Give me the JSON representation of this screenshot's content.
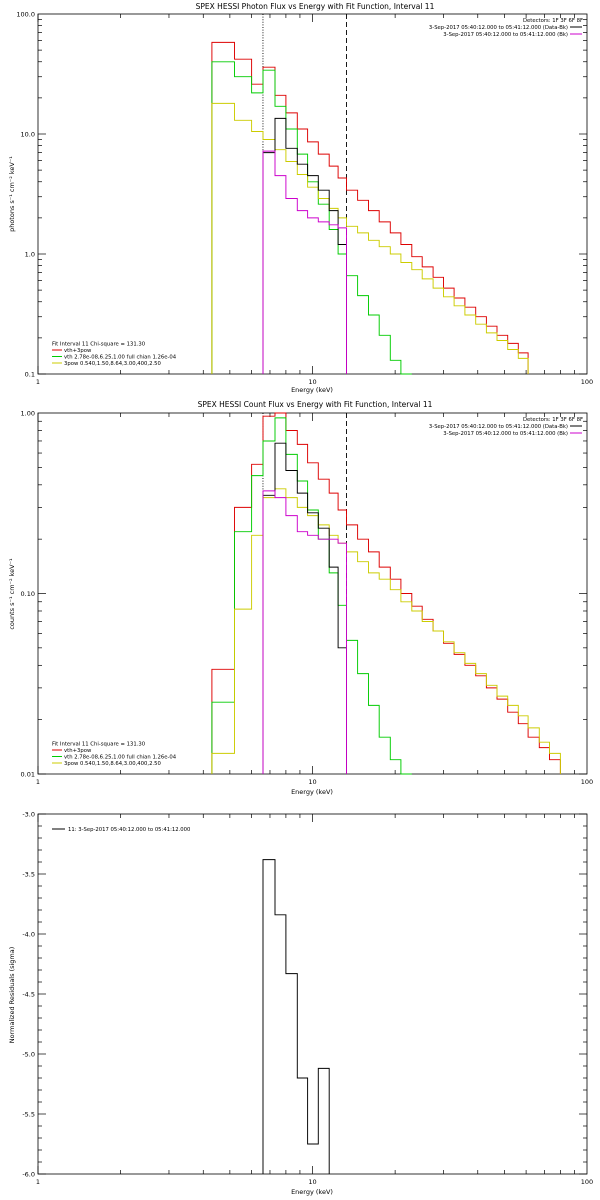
{
  "chart_data": [
    {
      "type": "line",
      "title": "SPEX HESSI Photon Flux vs Energy with Fit Function, Interval 11",
      "xlabel": "Energy (keV)",
      "ylabel": "photons s⁻¹ cm⁻² keV⁻¹",
      "xscale": "log",
      "yscale": "log",
      "xlim": [
        1,
        100
      ],
      "ylim": [
        0.1,
        100
      ],
      "xticklabels": [
        "1",
        "10",
        "100"
      ],
      "yticklabels": [
        "0.1",
        "1.0",
        "10.0",
        "100.0"
      ],
      "grid": false,
      "legend_top": {
        "position": "top-right",
        "entries": [
          {
            "text": "Detectors: 1F 3F 6F 8F",
            "color": ""
          },
          {
            "text": "3-Sep-2017 05:40:12.000 to 05:41:12.000 (Data-Bk)",
            "color": "#000000"
          },
          {
            "text": "3-Sep-2017 05:40:12.000 to 05:41:12.000 (Bk)",
            "color": "#cc00cc"
          }
        ]
      },
      "legend_bottom": {
        "position": "bottom-left",
        "entries": [
          {
            "text": "Fit Interval 11   Chi-square = 131.30",
            "color": ""
          },
          {
            "text": "vth+3pow",
            "color": "#dd0000"
          },
          {
            "text": "vth 2.78e-08,6.25,1.00  full chian 1.26e-04",
            "color": "#00cc00"
          },
          {
            "text": "3pow 0.540,1.50,8.64,3.00,400,2.50",
            "color": "#cccc00"
          }
        ]
      },
      "vlines": [
        {
          "x": 6.6,
          "style": "dotted"
        },
        {
          "x": 13.3,
          "style": "dashed"
        }
      ],
      "edges": [
        4.3,
        5.2,
        6.0,
        6.6,
        7.3,
        8.0,
        8.8,
        9.6,
        10.5,
        11.5,
        12.4,
        13.3,
        14.6,
        16.0,
        17.5,
        19.2,
        21.0,
        23.0,
        25.1,
        27.5,
        30.0,
        32.8,
        35.9,
        39.3,
        43.0,
        47.0,
        51.4,
        56.2,
        61.0
      ],
      "series": [
        {
          "name": "vth+3pow",
          "color": "#dd0000",
          "start": 0,
          "values": [
            58,
            42,
            26,
            36,
            21,
            15,
            11,
            8.6,
            6.8,
            5.4,
            4.3,
            3.4,
            2.8,
            2.3,
            1.85,
            1.5,
            1.2,
            0.95,
            0.78,
            0.64,
            0.52,
            0.43,
            0.36,
            0.3,
            0.25,
            0.21,
            0.18,
            0.15
          ]
        },
        {
          "name": "vth 2.78e-08,6.25,1.00  full chian 1.26e-04",
          "color": "#00cc00",
          "start": 0,
          "values": [
            40,
            30,
            22,
            34,
            17,
            11,
            6.8,
            4.0,
            2.6,
            1.6,
            1.0,
            0.66,
            0.45,
            0.31,
            0.21,
            0.13,
            0.1
          ]
        },
        {
          "name": "3pow 0.540,1.50,8.64,3.00,400,2.50",
          "color": "#cccc00",
          "start": 0,
          "values": [
            18,
            13,
            10.5,
            9,
            7.4,
            5.9,
            4.6,
            3.6,
            2.9,
            2.4,
            2.0,
            1.7,
            1.5,
            1.3,
            1.15,
            1.0,
            0.85,
            0.74,
            0.62,
            0.52,
            0.44,
            0.37,
            0.31,
            0.26,
            0.22,
            0.19,
            0.16,
            0.135
          ]
        },
        {
          "name": "3-Sep-2017 05:40:12.000 to 05:41:12.000 (Data-Bk)",
          "color": "#000000",
          "start": 3,
          "values": [
            7.0,
            13.5,
            7.6,
            5.6,
            4.5,
            3.4,
            2.3,
            1.2
          ]
        },
        {
          "name": "3-Sep-2017 05:40:12.000 to 05:41:12.000 (Bk)",
          "color": "#cc00cc",
          "start": 3,
          "values": [
            7.2,
            4.5,
            2.9,
            2.3,
            2.0,
            1.85,
            1.75,
            1.65
          ]
        }
      ]
    },
    {
      "type": "line",
      "title": "SPEX HESSI Count Flux vs Energy with Fit Function, Interval 11",
      "xlabel": "Energy (keV)",
      "ylabel": "counts s⁻¹ cm⁻² keV⁻¹",
      "xscale": "log",
      "yscale": "log",
      "xlim": [
        1,
        100
      ],
      "ylim": [
        0.01,
        1
      ],
      "xticklabels": [
        "1",
        "10",
        "100"
      ],
      "yticklabels": [
        "0.01",
        "0.10",
        "1.00"
      ],
      "grid": false,
      "legend_top": {
        "position": "top-right",
        "entries": [
          {
            "text": "Detectors: 1F 3F 6F 8F",
            "color": ""
          },
          {
            "text": "3-Sep-2017 05:40:12.000 to 05:41:12.000 (Data-Bk)",
            "color": "#000000"
          },
          {
            "text": "3-Sep-2017 05:40:12.000 to 05:41:12.000 (Bk)",
            "color": "#cc00cc"
          }
        ]
      },
      "legend_bottom": {
        "position": "bottom-left",
        "entries": [
          {
            "text": "Fit Interval 11   Chi-square = 131.30",
            "color": ""
          },
          {
            "text": "vth+3pow",
            "color": "#dd0000"
          },
          {
            "text": "vth 2.78e-08,6.25,1.00  full chian 1.26e-04",
            "color": "#00cc00"
          },
          {
            "text": "3pow 0.540,1.50,8.64,3.00,400,2.50",
            "color": "#cccc00"
          }
        ]
      },
      "vlines": [
        {
          "x": 6.6,
          "style": "dotted"
        },
        {
          "x": 13.3,
          "style": "dashed"
        }
      ],
      "edges": [
        4.3,
        5.2,
        6.0,
        6.6,
        7.3,
        8.0,
        8.8,
        9.6,
        10.5,
        11.5,
        12.4,
        13.3,
        14.6,
        16.0,
        17.5,
        19.2,
        21.0,
        23.0,
        25.1,
        27.5,
        30.0,
        32.8,
        35.9,
        39.3,
        43.0,
        47.0,
        51.4,
        56.2,
        61.0,
        67.0,
        73.0,
        80.0
      ],
      "series": [
        {
          "name": "vth+3pow",
          "color": "#dd0000",
          "start": 0,
          "values": [
            0.038,
            0.3,
            0.52,
            0.96,
            1.0,
            0.8,
            0.67,
            0.53,
            0.43,
            0.36,
            0.29,
            0.24,
            0.2,
            0.17,
            0.14,
            0.12,
            0.1,
            0.085,
            0.072,
            0.062,
            0.053,
            0.046,
            0.04,
            0.035,
            0.03,
            0.026,
            0.022,
            0.019,
            0.016,
            0.014,
            0.012
          ]
        },
        {
          "name": "vth 2.78e-08,6.25,1.00  full chian 1.26e-04",
          "color": "#00cc00",
          "start": 0,
          "values": [
            0.025,
            0.22,
            0.45,
            0.7,
            0.94,
            0.59,
            0.42,
            0.29,
            0.2,
            0.13,
            0.086,
            0.055,
            0.036,
            0.024,
            0.016,
            0.012,
            0.01
          ]
        },
        {
          "name": "3pow 0.540,1.50,8.64,3.00,400,2.50",
          "color": "#cccc00",
          "start": 0,
          "values": [
            0.013,
            0.082,
            0.21,
            0.34,
            0.38,
            0.34,
            0.3,
            0.27,
            0.24,
            0.21,
            0.19,
            0.17,
            0.15,
            0.13,
            0.12,
            0.105,
            0.09,
            0.08,
            0.07,
            0.062,
            0.054,
            0.047,
            0.041,
            0.036,
            0.031,
            0.027,
            0.024,
            0.021,
            0.018,
            0.015,
            0.013
          ]
        },
        {
          "name": "3-Sep-2017 05:40:12.000 to 05:41:12.000 (Data-Bk)",
          "color": "#000000",
          "start": 3,
          "values": [
            0.35,
            0.68,
            0.48,
            0.36,
            0.28,
            0.23,
            0.14,
            0.05
          ]
        },
        {
          "name": "3-Sep-2017 05:40:12.000 to 05:41:12.000 (Bk)",
          "color": "#cc00cc",
          "start": 3,
          "values": [
            0.37,
            0.34,
            0.27,
            0.22,
            0.21,
            0.2,
            0.2,
            0.19
          ]
        }
      ]
    },
    {
      "type": "line",
      "title": "",
      "xlabel": "Energy (keV)",
      "ylabel": "Normalized Residuals (sigma)",
      "xscale": "log",
      "yscale": "linear",
      "xlim": [
        1,
        100
      ],
      "ylim": [
        -6.0,
        -3.0
      ],
      "xticklabels": [
        "1",
        "10",
        "100"
      ],
      "yticks": [
        -6.0,
        -5.5,
        -5.0,
        -4.5,
        -4.0,
        -3.5,
        -3.0
      ],
      "yticklabels": [
        "-6.0",
        "-5.5",
        "-5.0",
        "-4.5",
        "-4.0",
        "-3.5",
        "-3.0"
      ],
      "grid": false,
      "legend_top": {
        "position": "top-left",
        "entries": [
          {
            "text": "11:  3-Sep-2017 05:40:12.000 to 05:41:12.000",
            "color": "#000000"
          }
        ]
      },
      "legend_bottom": {
        "position": "",
        "entries": []
      },
      "vlines": [],
      "edges": [
        6.6,
        7.3,
        8.0,
        8.8,
        9.6,
        10.5,
        11.5,
        12.4,
        13.3
      ],
      "series": [
        {
          "name": "11:  3-Sep-2017 05:40:12.000 to 05:41:12.000",
          "color": "#000000",
          "start": 0,
          "values": [
            -3.38,
            -3.84,
            -4.33,
            -5.2,
            -5.75,
            -5.12
          ]
        }
      ]
    }
  ]
}
